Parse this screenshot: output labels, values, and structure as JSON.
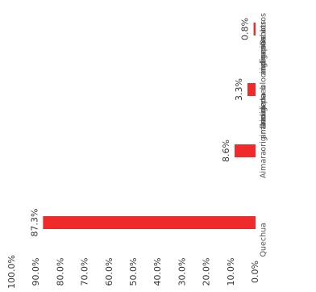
{
  "chart_data": {
    "type": "bar",
    "orientation": "horizontal-bars-rotated-text",
    "categories": [
      "Quechua",
      "Aimara",
      "De un pueblo indígena u originario de la amazonía",
      "De otros pueblos indígenas u originarios andinos"
    ],
    "category_lines": [
      [
        "Quechua"
      ],
      [
        "Aimara"
      ],
      [
        "De un pueblo",
        "indígena u",
        "originario de la",
        "amazonía"
      ],
      [
        "De otros",
        "pueblos",
        "indígenas u",
        "originarios",
        "andinos"
      ]
    ],
    "values": [
      87.3,
      8.6,
      3.3,
      0.8
    ],
    "data_labels": [
      "87.3%",
      "8.6%",
      "3.3%",
      "0.8%"
    ],
    "axis_ticks": [
      "100.0%",
      "90.0%",
      "80.0%",
      "70.0%",
      "60.0%",
      "50.0%",
      "40.0%",
      "30.0%",
      "20.0%",
      "10.0%",
      "0.0%"
    ],
    "xlim": [
      0,
      100
    ],
    "grid": false,
    "legend": "none",
    "bar_color": "#ee2a2a",
    "text_color": "#333333"
  }
}
